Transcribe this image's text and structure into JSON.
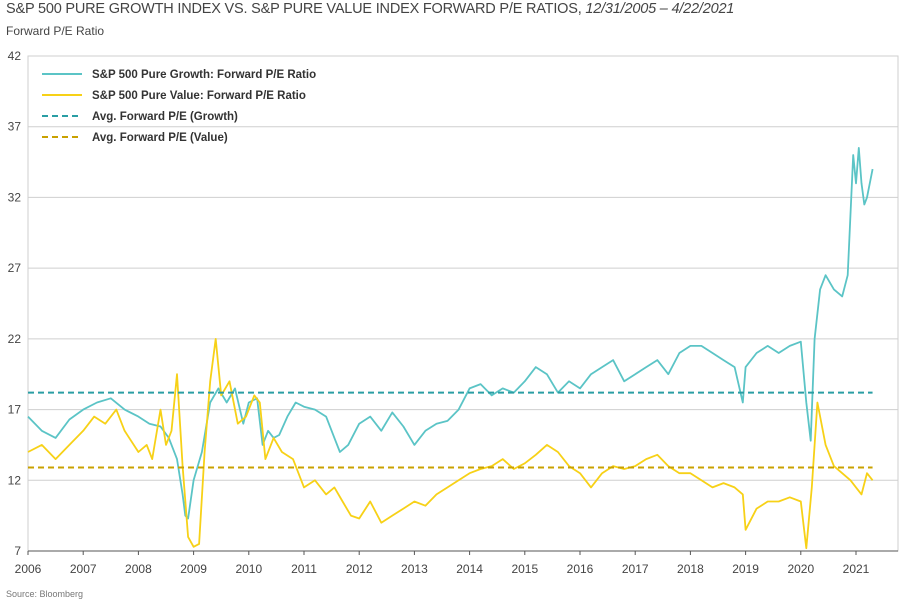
{
  "title_main": "S&P 500 PURE GROWTH INDEX VS. S&P PURE VALUE INDEX FORWARD P/E RATIOS, ",
  "title_dates": "12/31/2005 – 4/22/2021",
  "y_axis_label": "Forward P/E Ratio",
  "source": "Source: Bloomberg",
  "colors": {
    "growth": "#5bc4c6",
    "value": "#f7d117",
    "avg_growth": "#2a9ea4",
    "avg_value": "#c9a100",
    "grid": "#cfcfcf",
    "axis": "#555555"
  },
  "chart_data": {
    "type": "line",
    "ylim": [
      7,
      42
    ],
    "xlim": [
      2006.0,
      2021.5
    ],
    "yticks": [
      7,
      12,
      17,
      22,
      27,
      32,
      37,
      42
    ],
    "xticks": [
      2006,
      2007,
      2008,
      2009,
      2010,
      2011,
      2012,
      2013,
      2014,
      2015,
      2016,
      2017,
      2018,
      2019,
      2020,
      2021
    ],
    "grid": "horizontal",
    "legend_position": "top-left",
    "series": [
      {
        "name": "S&P 500 Pure Growth: Forward P/E Ratio",
        "style": "solid",
        "x": [
          2006.0,
          2006.25,
          2006.5,
          2006.75,
          2007.0,
          2007.25,
          2007.5,
          2007.75,
          2008.0,
          2008.2,
          2008.4,
          2008.55,
          2008.7,
          2008.8,
          2008.85,
          2008.9,
          2009.0,
          2009.15,
          2009.3,
          2009.45,
          2009.6,
          2009.75,
          2009.9,
          2010.0,
          2010.15,
          2010.25,
          2010.35,
          2010.45,
          2010.55,
          2010.7,
          2010.85,
          2011.0,
          2011.2,
          2011.4,
          2011.55,
          2011.65,
          2011.8,
          2012.0,
          2012.2,
          2012.4,
          2012.6,
          2012.8,
          2013.0,
          2013.2,
          2013.4,
          2013.6,
          2013.8,
          2014.0,
          2014.2,
          2014.4,
          2014.6,
          2014.8,
          2015.0,
          2015.2,
          2015.4,
          2015.6,
          2015.8,
          2016.0,
          2016.2,
          2016.4,
          2016.6,
          2016.8,
          2017.0,
          2017.2,
          2017.4,
          2017.6,
          2017.8,
          2018.0,
          2018.2,
          2018.4,
          2018.6,
          2018.8,
          2018.95,
          2019.0,
          2019.2,
          2019.4,
          2019.6,
          2019.8,
          2020.0,
          2020.1,
          2020.18,
          2020.25,
          2020.35,
          2020.45,
          2020.6,
          2020.75,
          2020.85,
          2020.95,
          2021.0,
          2021.05,
          2021.1,
          2021.15,
          2021.2,
          2021.3
        ],
        "y": [
          16.5,
          15.5,
          15.0,
          16.3,
          17.0,
          17.5,
          17.8,
          17.0,
          16.5,
          16.0,
          15.8,
          15.0,
          13.5,
          11.0,
          9.5,
          9.3,
          12.0,
          14.0,
          17.5,
          18.5,
          17.5,
          18.5,
          16.0,
          17.5,
          17.8,
          14.5,
          15.5,
          15.0,
          15.2,
          16.5,
          17.5,
          17.2,
          17.0,
          16.5,
          15.0,
          14.0,
          14.5,
          16.0,
          16.5,
          15.5,
          16.8,
          15.8,
          14.5,
          15.5,
          16.0,
          16.2,
          17.0,
          18.5,
          18.8,
          18.0,
          18.5,
          18.2,
          19.0,
          20.0,
          19.5,
          18.2,
          19.0,
          18.5,
          19.5,
          20.0,
          20.5,
          19.0,
          19.5,
          20.0,
          20.5,
          19.5,
          21.0,
          21.5,
          21.5,
          21.0,
          20.5,
          20.0,
          17.5,
          20.0,
          21.0,
          21.5,
          21.0,
          21.5,
          21.8,
          17.5,
          14.8,
          22.0,
          25.5,
          26.5,
          25.5,
          25.0,
          26.5,
          35.0,
          33.0,
          35.5,
          33.0,
          31.5,
          32.0,
          34.0
        ]
      },
      {
        "name": "S&P 500 Pure Value: Forward P/E Ratio",
        "style": "solid",
        "x": [
          2006.0,
          2006.25,
          2006.5,
          2006.75,
          2007.0,
          2007.2,
          2007.4,
          2007.6,
          2007.75,
          2008.0,
          2008.15,
          2008.25,
          2008.4,
          2008.5,
          2008.6,
          2008.7,
          2008.8,
          2008.9,
          2009.0,
          2009.1,
          2009.2,
          2009.3,
          2009.4,
          2009.5,
          2009.65,
          2009.8,
          2009.95,
          2010.1,
          2010.2,
          2010.3,
          2010.45,
          2010.6,
          2010.8,
          2011.0,
          2011.2,
          2011.4,
          2011.55,
          2011.7,
          2011.85,
          2012.0,
          2012.2,
          2012.4,
          2012.6,
          2012.8,
          2013.0,
          2013.2,
          2013.4,
          2013.6,
          2013.8,
          2014.0,
          2014.2,
          2014.4,
          2014.6,
          2014.8,
          2015.0,
          2015.2,
          2015.4,
          2015.6,
          2015.8,
          2016.0,
          2016.2,
          2016.4,
          2016.6,
          2016.8,
          2017.0,
          2017.2,
          2017.4,
          2017.6,
          2017.8,
          2018.0,
          2018.2,
          2018.4,
          2018.6,
          2018.8,
          2018.95,
          2019.0,
          2019.2,
          2019.4,
          2019.6,
          2019.8,
          2020.0,
          2020.1,
          2020.2,
          2020.3,
          2020.45,
          2020.6,
          2020.75,
          2020.9,
          2021.0,
          2021.1,
          2021.2,
          2021.3
        ],
        "y": [
          14.0,
          14.5,
          13.5,
          14.5,
          15.5,
          16.5,
          16.0,
          17.0,
          15.5,
          14.0,
          14.5,
          13.5,
          17.0,
          14.5,
          15.5,
          19.5,
          13.0,
          8.0,
          7.3,
          7.5,
          14.0,
          19.0,
          22.0,
          18.0,
          19.0,
          16.0,
          16.5,
          18.0,
          17.5,
          13.5,
          15.0,
          14.0,
          13.5,
          11.5,
          12.0,
          11.0,
          11.5,
          10.5,
          9.5,
          9.3,
          10.5,
          9.0,
          9.5,
          10.0,
          10.5,
          10.2,
          11.0,
          11.5,
          12.0,
          12.5,
          12.8,
          13.0,
          13.5,
          12.8,
          13.2,
          13.8,
          14.5,
          14.0,
          13.0,
          12.5,
          11.5,
          12.5,
          13.0,
          12.8,
          13.0,
          13.5,
          13.8,
          13.0,
          12.5,
          12.5,
          12.0,
          11.5,
          11.8,
          11.5,
          11.0,
          8.5,
          10.0,
          10.5,
          10.5,
          10.8,
          10.5,
          7.2,
          11.5,
          17.5,
          14.5,
          13.0,
          12.5,
          12.0,
          11.5,
          11.0,
          12.5,
          12.0
        ]
      },
      {
        "name": "Avg. Forward P/E (Growth)",
        "style": "dashed",
        "value": 18.2
      },
      {
        "name": "Avg. Forward P/E (Value)",
        "style": "dashed",
        "value": 12.9
      }
    ]
  }
}
